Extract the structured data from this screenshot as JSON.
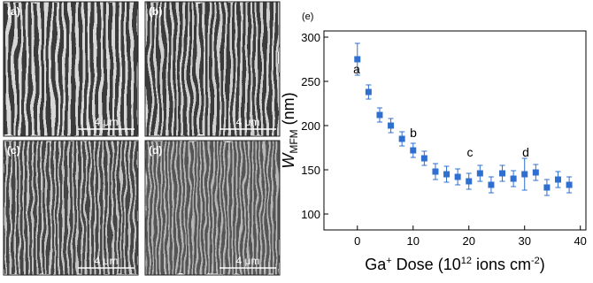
{
  "panels": [
    {
      "label": "(a)",
      "scale_bar": "4 μm"
    },
    {
      "label": "(b)",
      "scale_bar": "4 μm"
    },
    {
      "label": "(c)",
      "scale_bar": "4 μm"
    },
    {
      "label": "(d)",
      "scale_bar": "4 μm"
    }
  ],
  "chart_data": {
    "type": "scatter",
    "panel_label": "(e)",
    "x": [
      0,
      2,
      4,
      6,
      8,
      10,
      12,
      14,
      16,
      18,
      20,
      22,
      24,
      26,
      28,
      30,
      32,
      34,
      36,
      38
    ],
    "values": [
      275,
      238,
      212,
      200,
      185,
      172,
      163,
      148,
      145,
      142,
      137,
      146,
      133,
      146,
      140,
      145,
      147,
      130,
      139,
      133
    ],
    "errors": [
      18,
      8,
      8,
      8,
      8,
      8,
      8,
      9,
      9,
      9,
      9,
      9,
      9,
      9,
      9,
      18,
      9,
      9,
      9,
      9
    ],
    "color": "#2f6fd0",
    "xlim": [
      -6,
      41
    ],
    "ylim": [
      82,
      307
    ],
    "xticks": [
      0,
      10,
      20,
      30,
      40
    ],
    "yticks": [
      100,
      150,
      200,
      250,
      300
    ],
    "y_label": {
      "main": "W",
      "sub": "MFM",
      "unit": " (nm)"
    },
    "x_label": [
      "Ga",
      "+",
      " Dose (10",
      "12",
      " ions cm",
      "-2",
      ")"
    ],
    "annotations": [
      "a",
      "b",
      "c",
      "d"
    ]
  }
}
